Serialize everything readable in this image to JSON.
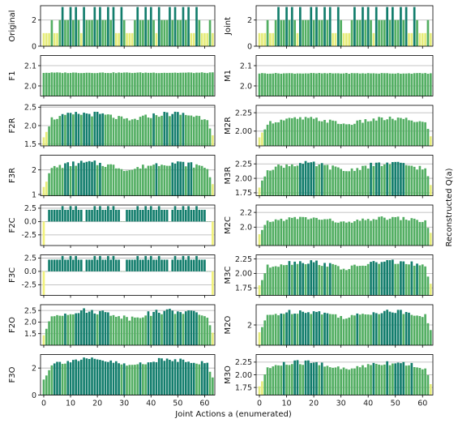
{
  "figure": {
    "xlabel": "Joint Actions a (enumerated)",
    "right_label": "Reconstructed Q(a)",
    "x_ticks": [
      0,
      10,
      20,
      30,
      40,
      50,
      60
    ],
    "n_actions": 64
  },
  "colors": {
    "low": "#e6ec7a",
    "mid": "#52ae62",
    "high": "#127d6c",
    "grid": "#b0b0b0"
  },
  "chart_data": [
    {
      "id": "original",
      "type": "bar",
      "ylabel": "Original",
      "ylim": [
        0,
        3.1
      ],
      "yticks": [
        0,
        2
      ],
      "values": [
        1,
        1,
        1,
        2,
        1,
        1,
        2,
        3,
        2,
        2,
        3,
        2,
        3,
        2,
        1,
        3,
        2,
        2,
        2,
        3,
        2,
        3,
        2,
        2,
        3,
        2,
        3,
        1,
        1,
        3,
        2,
        1,
        1,
        1,
        2,
        3,
        2,
        2,
        3,
        2,
        3,
        2,
        1,
        3,
        2,
        2,
        2,
        3,
        2,
        3,
        2,
        2,
        3,
        2,
        3,
        1,
        1,
        3,
        2,
        1,
        1,
        1,
        2,
        1
      ]
    },
    {
      "id": "joint",
      "type": "bar",
      "ylabel": "Joint",
      "ylim": [
        0,
        3.1
      ],
      "yticks": [
        0,
        2
      ],
      "values": [
        1,
        1,
        1,
        2,
        1,
        1,
        2,
        3,
        2,
        2,
        3,
        2,
        3,
        2,
        1,
        3,
        2,
        2,
        2,
        3,
        2,
        3,
        2,
        2,
        3,
        2,
        3,
        1,
        1,
        3,
        2,
        1,
        1,
        1,
        2,
        3,
        2,
        2,
        3,
        2,
        3,
        2,
        1,
        3,
        2,
        2,
        2,
        3,
        2,
        3,
        2,
        2,
        3,
        2,
        3,
        1,
        1,
        3,
        2,
        1,
        1,
        1,
        2,
        1
      ]
    },
    {
      "id": "f1",
      "type": "bar",
      "ylabel": "F1",
      "ylim": [
        1.95,
        2.15
      ],
      "yticks": [
        2.0,
        2.1
      ],
      "base": "const",
      "const": 2.065
    },
    {
      "id": "m1",
      "type": "bar",
      "ylabel": "M1",
      "ylim": [
        1.95,
        2.15
      ],
      "yticks": [
        2.0,
        2.1
      ],
      "base": "const",
      "const": 2.062
    },
    {
      "id": "f2r",
      "type": "bar",
      "ylabel": "F2R",
      "ylim": [
        1.45,
        2.55
      ],
      "yticks": [
        1.5,
        2.0,
        2.5
      ],
      "base": "smooth",
      "lo": 1.55,
      "hi": 2.4
    },
    {
      "id": "m2r",
      "type": "bar",
      "ylabel": "M2R",
      "ylim": [
        1.8,
        2.35
      ],
      "yticks": [
        2.0,
        2.25
      ],
      "base": "smooth",
      "lo": 1.85,
      "hi": 2.2
    },
    {
      "id": "f3r",
      "type": "bar",
      "ylabel": "F3R",
      "ylim": [
        0.95,
        2.6
      ],
      "yticks": [
        1,
        2
      ],
      "base": "smooth",
      "lo": 1.1,
      "hi": 2.4
    },
    {
      "id": "m3r",
      "type": "bar",
      "ylabel": "M3R",
      "ylim": [
        1.7,
        2.4
      ],
      "yticks": [
        1.75,
        2.0,
        2.25
      ],
      "base": "smooth",
      "lo": 1.75,
      "hi": 2.3
    },
    {
      "id": "f2c",
      "type": "bar",
      "ylabel": "F2C",
      "ylim": [
        -4.5,
        3.1
      ],
      "yticks": [
        -2.5,
        0.0,
        2.5
      ],
      "base": "coord"
    },
    {
      "id": "m2c",
      "type": "bar",
      "ylabel": "M2C",
      "ylim": [
        1.75,
        2.3
      ],
      "yticks": [
        2.0,
        2.2
      ],
      "base": "smooth",
      "lo": 1.85,
      "hi": 2.15
    },
    {
      "id": "f3c",
      "type": "bar",
      "ylabel": "F3C",
      "ylim": [
        -4.5,
        3.1
      ],
      "yticks": [
        -2.5,
        0.0,
        2.5
      ],
      "base": "coord"
    },
    {
      "id": "m3c",
      "type": "bar",
      "ylabel": "M3C",
      "ylim": [
        1.62,
        2.32
      ],
      "yticks": [
        1.75,
        2.0,
        2.25
      ],
      "base": "smooth",
      "lo": 1.7,
      "hi": 2.25
    },
    {
      "id": "f2o",
      "type": "bar",
      "ylabel": "F2O",
      "ylim": [
        1.0,
        2.75
      ],
      "yticks": [
        1.5,
        2.0,
        2.5
      ],
      "base": "smooth",
      "lo": 1.2,
      "hi": 2.6
    },
    {
      "id": "m2o",
      "type": "bar",
      "ylabel": "M2O",
      "ylim": [
        1.75,
        2.25
      ],
      "yticks": [
        2.0
      ],
      "base": "smooth",
      "lo": 1.85,
      "hi": 2.2
    },
    {
      "id": "f3o",
      "type": "bar",
      "ylabel": "F3O",
      "ylim": [
        0,
        3.0
      ],
      "yticks": [
        0,
        2
      ],
      "base": "smooth",
      "lo": 0.8,
      "hi": 2.8
    },
    {
      "id": "m3o",
      "type": "bar",
      "ylabel": "M3O",
      "ylim": [
        1.6,
        2.4
      ],
      "yticks": [
        1.75,
        2.0,
        2.25
      ],
      "base": "smooth",
      "lo": 1.65,
      "hi": 2.3
    }
  ]
}
